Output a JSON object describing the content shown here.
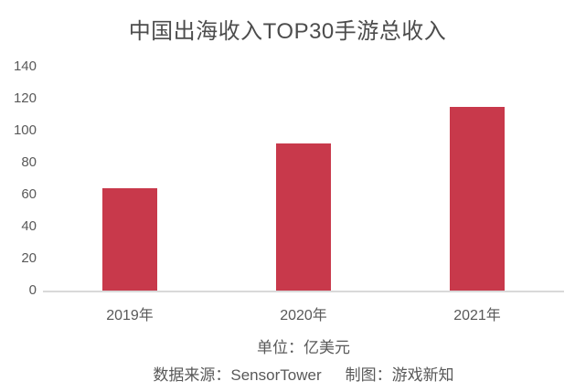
{
  "chart_data": {
    "type": "bar",
    "title": "中国出海收入TOP30手游总收入",
    "categories": [
      "2019年",
      "2020年",
      "2021年"
    ],
    "values": [
      64,
      92,
      115
    ],
    "ylim": [
      0,
      140
    ],
    "yticks": [
      0,
      20,
      40,
      60,
      80,
      100,
      120,
      140
    ],
    "grid": false,
    "legend_position": "none",
    "bar_color": "#c8394b",
    "axis_line_color": "#d9d9d9",
    "unit_label": "单位：亿美元",
    "source_label": "数据来源：SensorTower",
    "credit_label": "制图：游戏新知"
  }
}
